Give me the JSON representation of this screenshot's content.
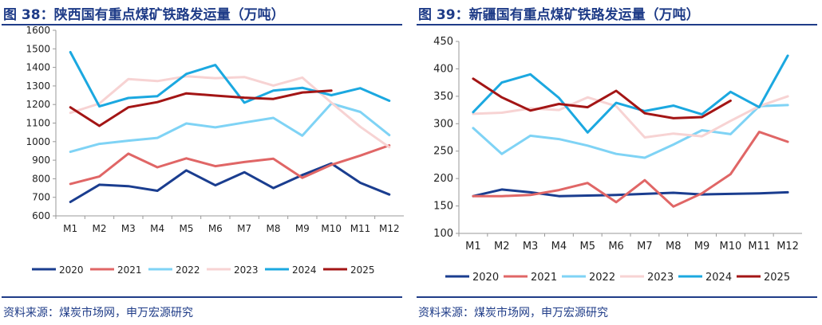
{
  "page": {
    "source_label_left": "资料来源：煤炭市场网，申万宏源研究",
    "source_label_right": "资料来源：煤炭市场网，申万宏源研究"
  },
  "chart_data": [
    {
      "type": "line",
      "title": "图 38：陕西国有重点煤矿铁路发运量（万吨）",
      "xlabel": "",
      "ylabel": "",
      "categories": [
        "M1",
        "M2",
        "M3",
        "M4",
        "M5",
        "M6",
        "M7",
        "M8",
        "M9",
        "M10",
        "M11",
        "M12"
      ],
      "ylim": [
        600,
        1600
      ],
      "yticks": [
        600,
        700,
        800,
        900,
        1000,
        1100,
        1200,
        1300,
        1400,
        1500,
        1600
      ],
      "grid": false,
      "legend": "bottom",
      "series": [
        {
          "name": "2020",
          "color": "#1a3d8f",
          "values": [
            675,
            768,
            760,
            735,
            845,
            765,
            835,
            750,
            820,
            882,
            778,
            715
          ]
        },
        {
          "name": "2021",
          "color": "#e06666",
          "values": [
            772,
            812,
            935,
            862,
            910,
            868,
            890,
            908,
            805,
            875,
            925,
            980
          ]
        },
        {
          "name": "2022",
          "color": "#7fd3f5",
          "values": [
            945,
            988,
            1005,
            1020,
            1098,
            1077,
            1103,
            1128,
            1032,
            1205,
            1160,
            1035
          ]
        },
        {
          "name": "2023",
          "color": "#f7d3d3",
          "values": [
            1155,
            1205,
            1337,
            1326,
            1352,
            1342,
            1348,
            1302,
            1345,
            1210,
            1080,
            970
          ]
        },
        {
          "name": "2024",
          "color": "#1ba8e0",
          "values": [
            1482,
            1190,
            1235,
            1245,
            1365,
            1413,
            1210,
            1275,
            1290,
            1250,
            1288,
            1220
          ]
        },
        {
          "name": "2025",
          "color": "#a31515",
          "values": [
            1185,
            1085,
            1185,
            1213,
            1260,
            1248,
            1237,
            1230,
            1265,
            1275,
            null,
            null
          ]
        }
      ]
    },
    {
      "type": "line",
      "title": "图 39：新疆国有重点煤矿铁路发运量（万吨）",
      "xlabel": "",
      "ylabel": "",
      "categories": [
        "M1",
        "M2",
        "M3",
        "M4",
        "M5",
        "M6",
        "M7",
        "M8",
        "M9",
        "M10",
        "M11",
        "M12"
      ],
      "ylim": [
        100,
        450
      ],
      "yticks": [
        100,
        150,
        200,
        250,
        300,
        350,
        400,
        450
      ],
      "grid": false,
      "legend": "bottom",
      "series": [
        {
          "name": "2020",
          "color": "#1a3d8f",
          "values": [
            168,
            180,
            175,
            168,
            169,
            170,
            172,
            174,
            171,
            172,
            173,
            175
          ]
        },
        {
          "name": "2021",
          "color": "#e06666",
          "values": [
            168,
            168,
            170,
            179,
            192,
            157,
            197,
            149,
            173,
            208,
            285,
            267
          ]
        },
        {
          "name": "2022",
          "color": "#7fd3f5",
          "values": [
            292,
            245,
            278,
            272,
            260,
            245,
            238,
            262,
            288,
            281,
            332,
            334
          ]
        },
        {
          "name": "2023",
          "color": "#f7d3d3",
          "values": [
            318,
            320,
            328,
            325,
            348,
            332,
            275,
            282,
            277,
            305,
            332,
            350
          ]
        },
        {
          "name": "2024",
          "color": "#1ba8e0",
          "values": [
            321,
            375,
            390,
            347,
            284,
            338,
            323,
            333,
            317,
            358,
            330,
            424
          ]
        },
        {
          "name": "2025",
          "color": "#a31515",
          "values": [
            382,
            348,
            324,
            336,
            330,
            360,
            319,
            310,
            312,
            342,
            null,
            null
          ]
        }
      ]
    }
  ]
}
